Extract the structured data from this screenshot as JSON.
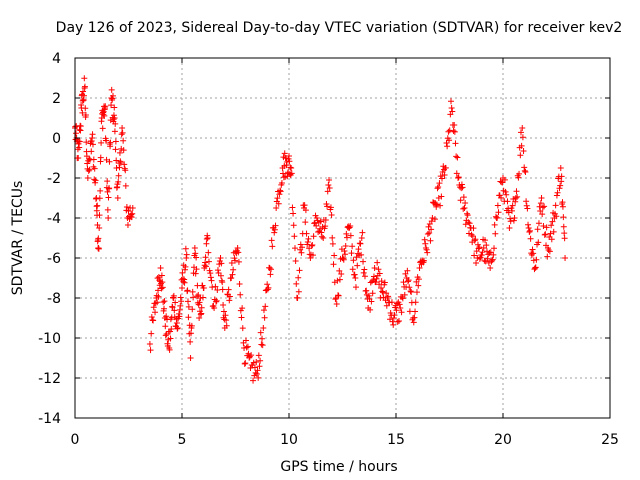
{
  "chart_data": {
    "type": "scatter",
    "title": "Day 126 of 2023, Sidereal Day-to-day VTEC variation (SDTVAR) for receiver kev2",
    "xlabel": "GPS time / hours",
    "ylabel": "SDTVAR / TECUs",
    "xlim": [
      0,
      25
    ],
    "ylim": [
      -14,
      4
    ],
    "xticks": [
      "0",
      "5",
      "10",
      "15",
      "20",
      "25"
    ],
    "yticks": [
      "-14",
      "-12",
      "-10",
      "-8",
      "-6",
      "-4",
      "-2",
      "0",
      "2",
      "4"
    ],
    "grid": true,
    "marker": "+",
    "series": [
      {
        "name": "kev2",
        "color": "#ff0000",
        "x": [
          0.0,
          0.15,
          0.3,
          0.45,
          0.6,
          0.8,
          1.0,
          1.1,
          1.25,
          1.4,
          1.55,
          1.7,
          1.85,
          2.0,
          2.2,
          2.45,
          2.7,
          3.5,
          3.8,
          4.0,
          4.2,
          4.4,
          4.6,
          4.8,
          5.0,
          5.2,
          5.4,
          5.6,
          5.8,
          6.0,
          6.2,
          6.5,
          6.8,
          7.0,
          7.3,
          7.6,
          7.9,
          8.2,
          8.5,
          8.8,
          9.1,
          9.4,
          9.7,
          9.9,
          10.1,
          10.4,
          10.7,
          11.0,
          11.3,
          11.6,
          11.9,
          12.2,
          12.5,
          12.8,
          13.1,
          13.4,
          13.7,
          14.0,
          14.3,
          14.6,
          14.9,
          15.2,
          15.5,
          15.8,
          16.1,
          16.4,
          16.7,
          17.0,
          17.3,
          17.6,
          17.9,
          18.2,
          18.5,
          18.8,
          19.1,
          19.4,
          19.7,
          20.0,
          20.3,
          20.6,
          20.9,
          21.2,
          21.5,
          21.8,
          22.1,
          22.4,
          22.7,
          22.9
        ],
        "y": [
          0.5,
          -1.0,
          1.5,
          2.5,
          -2.0,
          0.0,
          -3.0,
          -5.5,
          1.0,
          1.5,
          -4.0,
          2.0,
          1.0,
          -3.0,
          0.5,
          -4.0,
          -3.5,
          -10.3,
          -8.0,
          -6.5,
          -9.0,
          -10.5,
          -8.0,
          -9.5,
          -7.5,
          -6.0,
          -11.0,
          -5.5,
          -9.0,
          -7.5,
          -5.0,
          -8.5,
          -6.0,
          -9.5,
          -7.0,
          -5.5,
          -10.5,
          -11.5,
          -11.8,
          -9.5,
          -6.5,
          -3.5,
          -1.5,
          -1.2,
          -1.5,
          -8.0,
          -3.5,
          -6.0,
          -4.0,
          -5.0,
          -2.5,
          -8.0,
          -6.0,
          -4.5,
          -7.0,
          -5.0,
          -8.5,
          -6.5,
          -7.5,
          -8.0,
          -9.0,
          -8.5,
          -7.0,
          -9.0,
          -6.5,
          -5.5,
          -4.0,
          -3.0,
          -1.5,
          1.5,
          -2.0,
          -3.5,
          -4.5,
          -6.0,
          -5.5,
          -6.5,
          -4.0,
          -2.0,
          -4.5,
          -3.0,
          0.5,
          -4.5,
          -6.5,
          -3.0,
          -5.5,
          -4.0,
          -1.5,
          -6.0
        ]
      }
    ]
  }
}
